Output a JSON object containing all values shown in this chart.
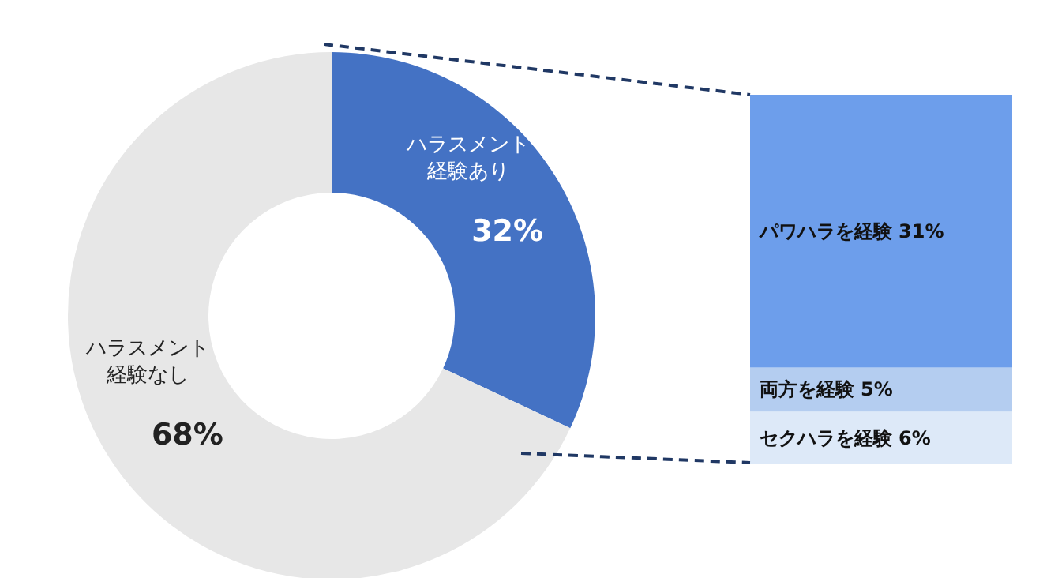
{
  "chart_data": [
    {
      "type": "donut",
      "categories": [
        "ハラスメント経験あり",
        "ハラスメント経験なし"
      ],
      "values": [
        32,
        68
      ],
      "colors": [
        "#4472c4",
        "#e7e7e7"
      ],
      "value_labels": [
        "32%",
        "68%"
      ],
      "legend": false
    },
    {
      "type": "bar",
      "stacked": true,
      "categories": [
        null
      ],
      "tick_labels": false,
      "legend": false,
      "series": [
        {
          "name": "セクハラを経験",
          "color": "#dde9f8",
          "values": [
            6
          ],
          "value_labels": [
            "6%"
          ]
        },
        {
          "name": "両方を経験",
          "color": "#b4cdf0",
          "values": [
            5
          ],
          "value_labels": [
            "5%"
          ]
        },
        {
          "name": "パワハラを経験",
          "color": "#6d9eeb",
          "values": [
            31
          ],
          "value_labels": [
            "31%"
          ]
        }
      ]
    }
  ]
}
